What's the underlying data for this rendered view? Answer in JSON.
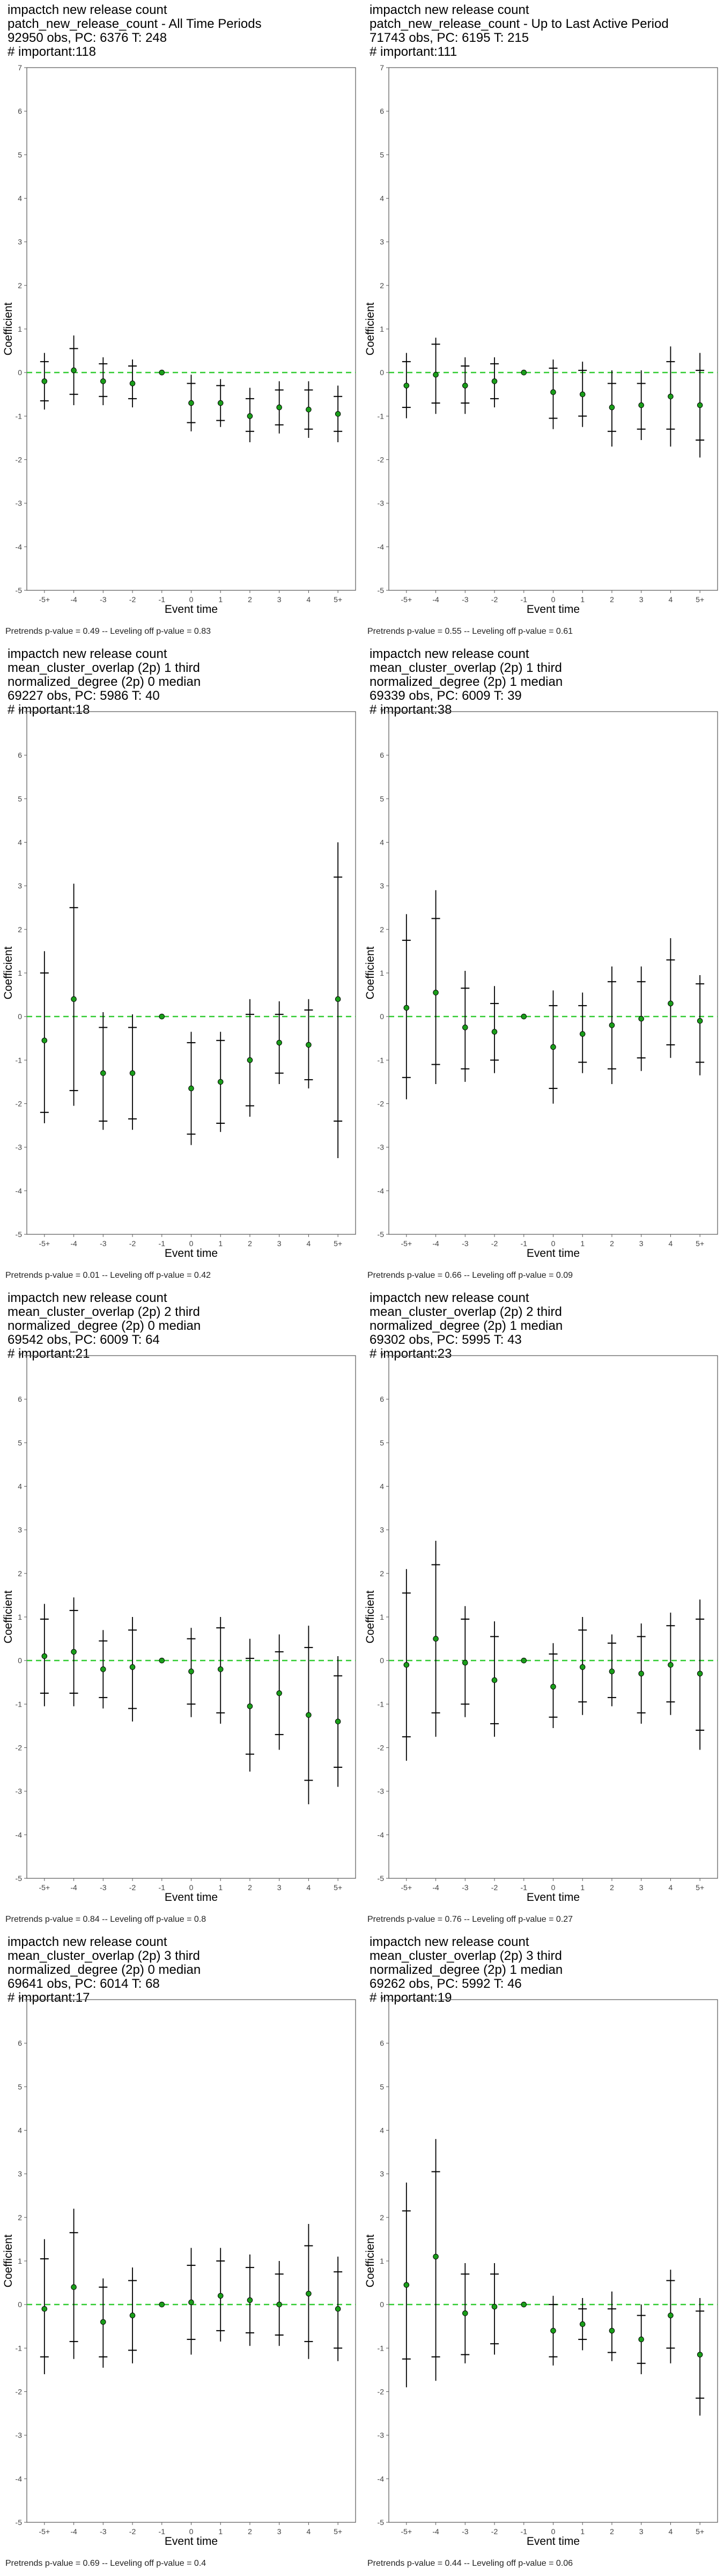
{
  "chart_data": [
    {
      "type": "scatter",
      "title_lines": [
        "impactch new release count",
        "patch_new_release_count - All Time Periods",
        "92950 obs, PC: 6376 T: 248",
        "# important:118"
      ],
      "xlabel": "Event time",
      "ylabel": "Coefficient",
      "categories": [
        "-5+",
        "-4",
        "-3",
        "-2",
        "-1",
        "0",
        "1",
        "2",
        "3",
        "4",
        "5+"
      ],
      "ylim": [
        -5,
        7
      ],
      "reference_line": 0,
      "estimates": [
        -0.2,
        0.05,
        -0.2,
        -0.25,
        0,
        -0.7,
        -0.7,
        -1.0,
        -0.8,
        -0.85,
        -0.95
      ],
      "inner_low": [
        -0.65,
        -0.5,
        -0.55,
        -0.6,
        0,
        -1.15,
        -1.1,
        -1.35,
        -1.2,
        -1.3,
        -1.35
      ],
      "inner_high": [
        0.25,
        0.55,
        0.2,
        0.15,
        0,
        -0.25,
        -0.3,
        -0.6,
        -0.4,
        -0.4,
        -0.55
      ],
      "outer_low": [
        -0.85,
        -0.75,
        -0.75,
        -0.8,
        0,
        -1.35,
        -1.25,
        -1.6,
        -1.4,
        -1.5,
        -1.6
      ],
      "outer_high": [
        0.45,
        0.85,
        0.35,
        0.3,
        0,
        -0.05,
        -0.15,
        -0.35,
        -0.2,
        -0.2,
        -0.3
      ],
      "caption": "Pretrends p-value = 0.49 -- Leveling off p-value = 0.83"
    },
    {
      "type": "scatter",
      "title_lines": [
        "impactch new release count",
        "patch_new_release_count - Up to Last Active Period",
        "71743 obs, PC: 6195 T: 215",
        "# important:111"
      ],
      "xlabel": "Event time",
      "ylabel": "Coefficient",
      "categories": [
        "-5+",
        "-4",
        "-3",
        "-2",
        "-1",
        "0",
        "1",
        "2",
        "3",
        "4",
        "5+"
      ],
      "ylim": [
        -5,
        7
      ],
      "reference_line": 0,
      "estimates": [
        -0.3,
        -0.05,
        -0.3,
        -0.2,
        0,
        -0.45,
        -0.5,
        -0.8,
        -0.75,
        -0.55,
        -0.75
      ],
      "inner_low": [
        -0.8,
        -0.7,
        -0.7,
        -0.6,
        0,
        -1.05,
        -1.0,
        -1.35,
        -1.3,
        -1.3,
        -1.55
      ],
      "inner_high": [
        0.25,
        0.65,
        0.15,
        0.2,
        0,
        0.1,
        0.05,
        -0.25,
        -0.25,
        0.25,
        0.05
      ],
      "outer_low": [
        -1.05,
        -0.95,
        -0.95,
        -0.8,
        0,
        -1.3,
        -1.25,
        -1.7,
        -1.55,
        -1.7,
        -1.95
      ],
      "outer_high": [
        0.45,
        0.8,
        0.35,
        0.35,
        0,
        0.3,
        0.25,
        0.05,
        0.05,
        0.6,
        0.45
      ],
      "caption": "Pretrends p-value = 0.55 -- Leveling off p-value = 0.61"
    },
    {
      "type": "scatter",
      "title_lines": [
        "impactch new release count",
        "mean_cluster_overlap (2p) 1 third",
        "normalized_degree (2p) 0 median",
        "69227 obs, PC: 5986 T: 40",
        "# important:18"
      ],
      "xlabel": "Event time",
      "ylabel": "Coefficient",
      "categories": [
        "-5+",
        "-4",
        "-3",
        "-2",
        "-1",
        "0",
        "1",
        "2",
        "3",
        "4",
        "5+"
      ],
      "ylim": [
        -5,
        7
      ],
      "reference_line": 0,
      "estimates": [
        -0.55,
        0.4,
        -1.3,
        -1.3,
        0,
        -1.65,
        -1.5,
        -1.0,
        -0.6,
        -0.65,
        0.4
      ],
      "inner_low": [
        -2.2,
        -1.7,
        -2.4,
        -2.35,
        0,
        -2.7,
        -2.45,
        -2.05,
        -1.3,
        -1.45,
        -2.4
      ],
      "inner_high": [
        1.0,
        2.5,
        -0.25,
        -0.25,
        0,
        -0.6,
        -0.55,
        0.05,
        0.05,
        0.15,
        3.2
      ],
      "outer_low": [
        -2.45,
        -2.05,
        -2.6,
        -2.6,
        0,
        -2.95,
        -2.65,
        -2.3,
        -1.55,
        -1.65,
        -3.25
      ],
      "outer_high": [
        1.5,
        3.05,
        0.1,
        0.05,
        0,
        -0.35,
        -0.35,
        0.4,
        0.35,
        0.4,
        4.0
      ],
      "caption": "Pretrends p-value = 0.01 -- Leveling off p-value = 0.42"
    },
    {
      "type": "scatter",
      "title_lines": [
        "impactch new release count",
        "mean_cluster_overlap (2p) 1 third",
        "normalized_degree (2p) 1 median",
        "69339 obs, PC: 6009 T: 39",
        "# important:38"
      ],
      "xlabel": "Event time",
      "ylabel": "Coefficient",
      "categories": [
        "-5+",
        "-4",
        "-3",
        "-2",
        "-1",
        "0",
        "1",
        "2",
        "3",
        "4",
        "5+"
      ],
      "ylim": [
        -5,
        7
      ],
      "reference_line": 0,
      "estimates": [
        0.2,
        0.55,
        -0.25,
        -0.35,
        0,
        -0.7,
        -0.4,
        -0.2,
        -0.05,
        0.3,
        -0.1
      ],
      "inner_low": [
        -1.4,
        -1.1,
        -1.2,
        -1.0,
        0,
        -1.65,
        -1.05,
        -1.2,
        -0.95,
        -0.65,
        -1.05
      ],
      "inner_high": [
        1.75,
        2.25,
        0.65,
        0.3,
        0,
        0.25,
        0.25,
        0.8,
        0.8,
        1.3,
        0.75
      ],
      "outer_low": [
        -1.9,
        -1.55,
        -1.5,
        -1.3,
        0,
        -2.0,
        -1.3,
        -1.55,
        -1.25,
        -0.95,
        -1.35
      ],
      "outer_high": [
        2.35,
        2.9,
        1.05,
        0.7,
        0,
        0.6,
        0.55,
        1.15,
        1.15,
        1.8,
        0.95
      ],
      "caption": "Pretrends p-value = 0.66 -- Leveling off p-value = 0.09"
    },
    {
      "type": "scatter",
      "title_lines": [
        "impactch new release count",
        "mean_cluster_overlap (2p) 2 third",
        "normalized_degree (2p) 0 median",
        "69542 obs, PC: 6009 T: 64",
        "# important:21"
      ],
      "xlabel": "Event time",
      "ylabel": "Coefficient",
      "categories": [
        "-5+",
        "-4",
        "-3",
        "-2",
        "-1",
        "0",
        "1",
        "2",
        "3",
        "4",
        "5+"
      ],
      "ylim": [
        -5,
        7
      ],
      "reference_line": 0,
      "estimates": [
        0.1,
        0.2,
        -0.2,
        -0.15,
        0,
        -0.25,
        -0.2,
        -1.05,
        -0.75,
        -1.25,
        -1.4
      ],
      "inner_low": [
        -0.75,
        -0.75,
        -0.85,
        -1.1,
        0,
        -1.0,
        -1.2,
        -2.15,
        -1.7,
        -2.75,
        -2.45
      ],
      "inner_high": [
        0.95,
        1.15,
        0.45,
        0.7,
        0,
        0.5,
        0.75,
        0.05,
        0.2,
        0.3,
        -0.35
      ],
      "outer_low": [
        -1.05,
        -1.05,
        -1.1,
        -1.4,
        0,
        -1.3,
        -1.45,
        -2.55,
        -2.05,
        -3.3,
        -2.9
      ],
      "outer_high": [
        1.3,
        1.45,
        0.7,
        1.0,
        0,
        0.75,
        1.0,
        0.5,
        0.6,
        0.8,
        0.1
      ],
      "caption": "Pretrends p-value = 0.84 -- Leveling off p-value = 0.8"
    },
    {
      "type": "scatter",
      "title_lines": [
        "impactch new release count",
        "mean_cluster_overlap (2p) 2 third",
        "normalized_degree (2p) 1 median",
        "69302 obs, PC: 5995 T: 43",
        "# important:23"
      ],
      "xlabel": "Event time",
      "ylabel": "Coefficient",
      "categories": [
        "-5+",
        "-4",
        "-3",
        "-2",
        "-1",
        "0",
        "1",
        "2",
        "3",
        "4",
        "5+"
      ],
      "ylim": [
        -5,
        7
      ],
      "reference_line": 0,
      "estimates": [
        -0.1,
        0.5,
        -0.05,
        -0.45,
        0,
        -0.6,
        -0.15,
        -0.25,
        -0.3,
        -0.1,
        -0.3
      ],
      "inner_low": [
        -1.75,
        -1.2,
        -1.0,
        -1.45,
        0,
        -1.3,
        -0.95,
        -0.85,
        -1.2,
        -0.95,
        -1.6
      ],
      "inner_high": [
        1.55,
        2.2,
        0.95,
        0.55,
        0,
        0.15,
        0.7,
        0.4,
        0.55,
        0.8,
        0.95
      ],
      "outer_low": [
        -2.3,
        -1.75,
        -1.3,
        -1.75,
        0,
        -1.55,
        -1.25,
        -1.05,
        -1.45,
        -1.25,
        -2.05
      ],
      "outer_high": [
        2.1,
        2.75,
        1.25,
        0.9,
        0,
        0.4,
        1.0,
        0.6,
        0.85,
        1.1,
        1.4
      ],
      "caption": "Pretrends p-value = 0.76 -- Leveling off p-value = 0.27"
    },
    {
      "type": "scatter",
      "title_lines": [
        "impactch new release count",
        "mean_cluster_overlap (2p) 3 third",
        "normalized_degree (2p) 0 median",
        "69641 obs, PC: 6014 T: 68",
        "# important:17"
      ],
      "xlabel": "Event time",
      "ylabel": "Coefficient",
      "categories": [
        "-5+",
        "-4",
        "-3",
        "-2",
        "-1",
        "0",
        "1",
        "2",
        "3",
        "4",
        "5+"
      ],
      "ylim": [
        -5,
        7
      ],
      "reference_line": 0,
      "estimates": [
        -0.1,
        0.4,
        -0.4,
        -0.25,
        0,
        0.05,
        0.2,
        0.1,
        0.0,
        0.25,
        -0.1
      ],
      "inner_low": [
        -1.2,
        -0.85,
        -1.2,
        -1.05,
        0,
        -0.8,
        -0.6,
        -0.65,
        -0.7,
        -0.85,
        -1.0
      ],
      "inner_high": [
        1.05,
        1.65,
        0.4,
        0.55,
        0,
        0.9,
        1.0,
        0.85,
        0.7,
        1.35,
        0.75
      ],
      "outer_low": [
        -1.6,
        -1.25,
        -1.45,
        -1.35,
        0,
        -1.15,
        -0.85,
        -0.95,
        -0.95,
        -1.25,
        -1.3
      ],
      "outer_high": [
        1.5,
        2.2,
        0.6,
        0.85,
        0,
        1.3,
        1.3,
        1.15,
        1.0,
        1.85,
        1.1
      ],
      "caption": "Pretrends p-value = 0.69 -- Leveling off p-value = 0.4"
    },
    {
      "type": "scatter",
      "title_lines": [
        "impactch new release count",
        "mean_cluster_overlap (2p) 3 third",
        "normalized_degree (2p) 1 median",
        "69262 obs, PC: 5992 T: 46",
        "# important:19"
      ],
      "xlabel": "Event time",
      "ylabel": "Coefficient",
      "categories": [
        "-5+",
        "-4",
        "-3",
        "-2",
        "-1",
        "0",
        "1",
        "2",
        "3",
        "4",
        "5+"
      ],
      "ylim": [
        -5,
        7
      ],
      "reference_line": 0,
      "estimates": [
        0.45,
        1.1,
        -0.2,
        -0.05,
        0,
        -0.6,
        -0.45,
        -0.6,
        -0.8,
        -0.25,
        -1.15
      ],
      "inner_low": [
        -1.25,
        -1.2,
        -1.15,
        -0.9,
        0,
        -1.2,
        -0.8,
        -1.1,
        -1.35,
        -1.0,
        -2.15
      ],
      "inner_high": [
        2.15,
        3.05,
        0.7,
        0.7,
        0,
        0.0,
        -0.1,
        -0.1,
        -0.25,
        0.55,
        -0.15
      ],
      "outer_low": [
        -1.9,
        -1.75,
        -1.35,
        -1.15,
        0,
        -1.4,
        -1.05,
        -1.3,
        -1.6,
        -1.35,
        -2.55
      ],
      "outer_high": [
        2.8,
        3.8,
        0.95,
        0.95,
        0,
        0.2,
        0.15,
        0.3,
        0.0,
        0.8,
        0.15
      ],
      "caption": "Pretrends p-value = 0.44 -- Leveling off p-value = 0.06"
    }
  ],
  "colors": {
    "estimate": "#1a9e1a",
    "estimate_outline": "#000000",
    "reference_line": "#33cc33",
    "error_bar": "#000000",
    "frame": "#555555"
  }
}
